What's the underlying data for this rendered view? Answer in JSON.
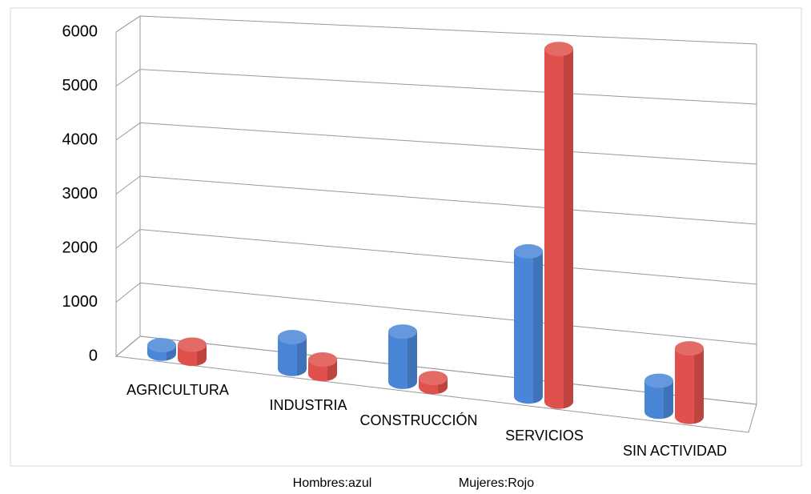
{
  "chart_data": {
    "type": "bar3d",
    "categories": [
      "AGRICULTURA",
      "INDUSTRIA",
      "CONSTRUCCIÓN",
      "SERVICIOS",
      "SIN ACTIVIDAD"
    ],
    "series": [
      {
        "name": "Hombres:azul",
        "color": "#4a86d8",
        "values": [
          150,
          550,
          850,
          2400,
          500
        ]
      },
      {
        "name": "Mujeres:Rojo",
        "color": "#e0504c",
        "values": [
          250,
          250,
          150,
          5800,
          1100
        ]
      }
    ],
    "ylim": [
      0,
      6000
    ],
    "yticks": [
      0,
      1000,
      2000,
      3000,
      4000,
      5000,
      6000
    ],
    "grid": true
  }
}
